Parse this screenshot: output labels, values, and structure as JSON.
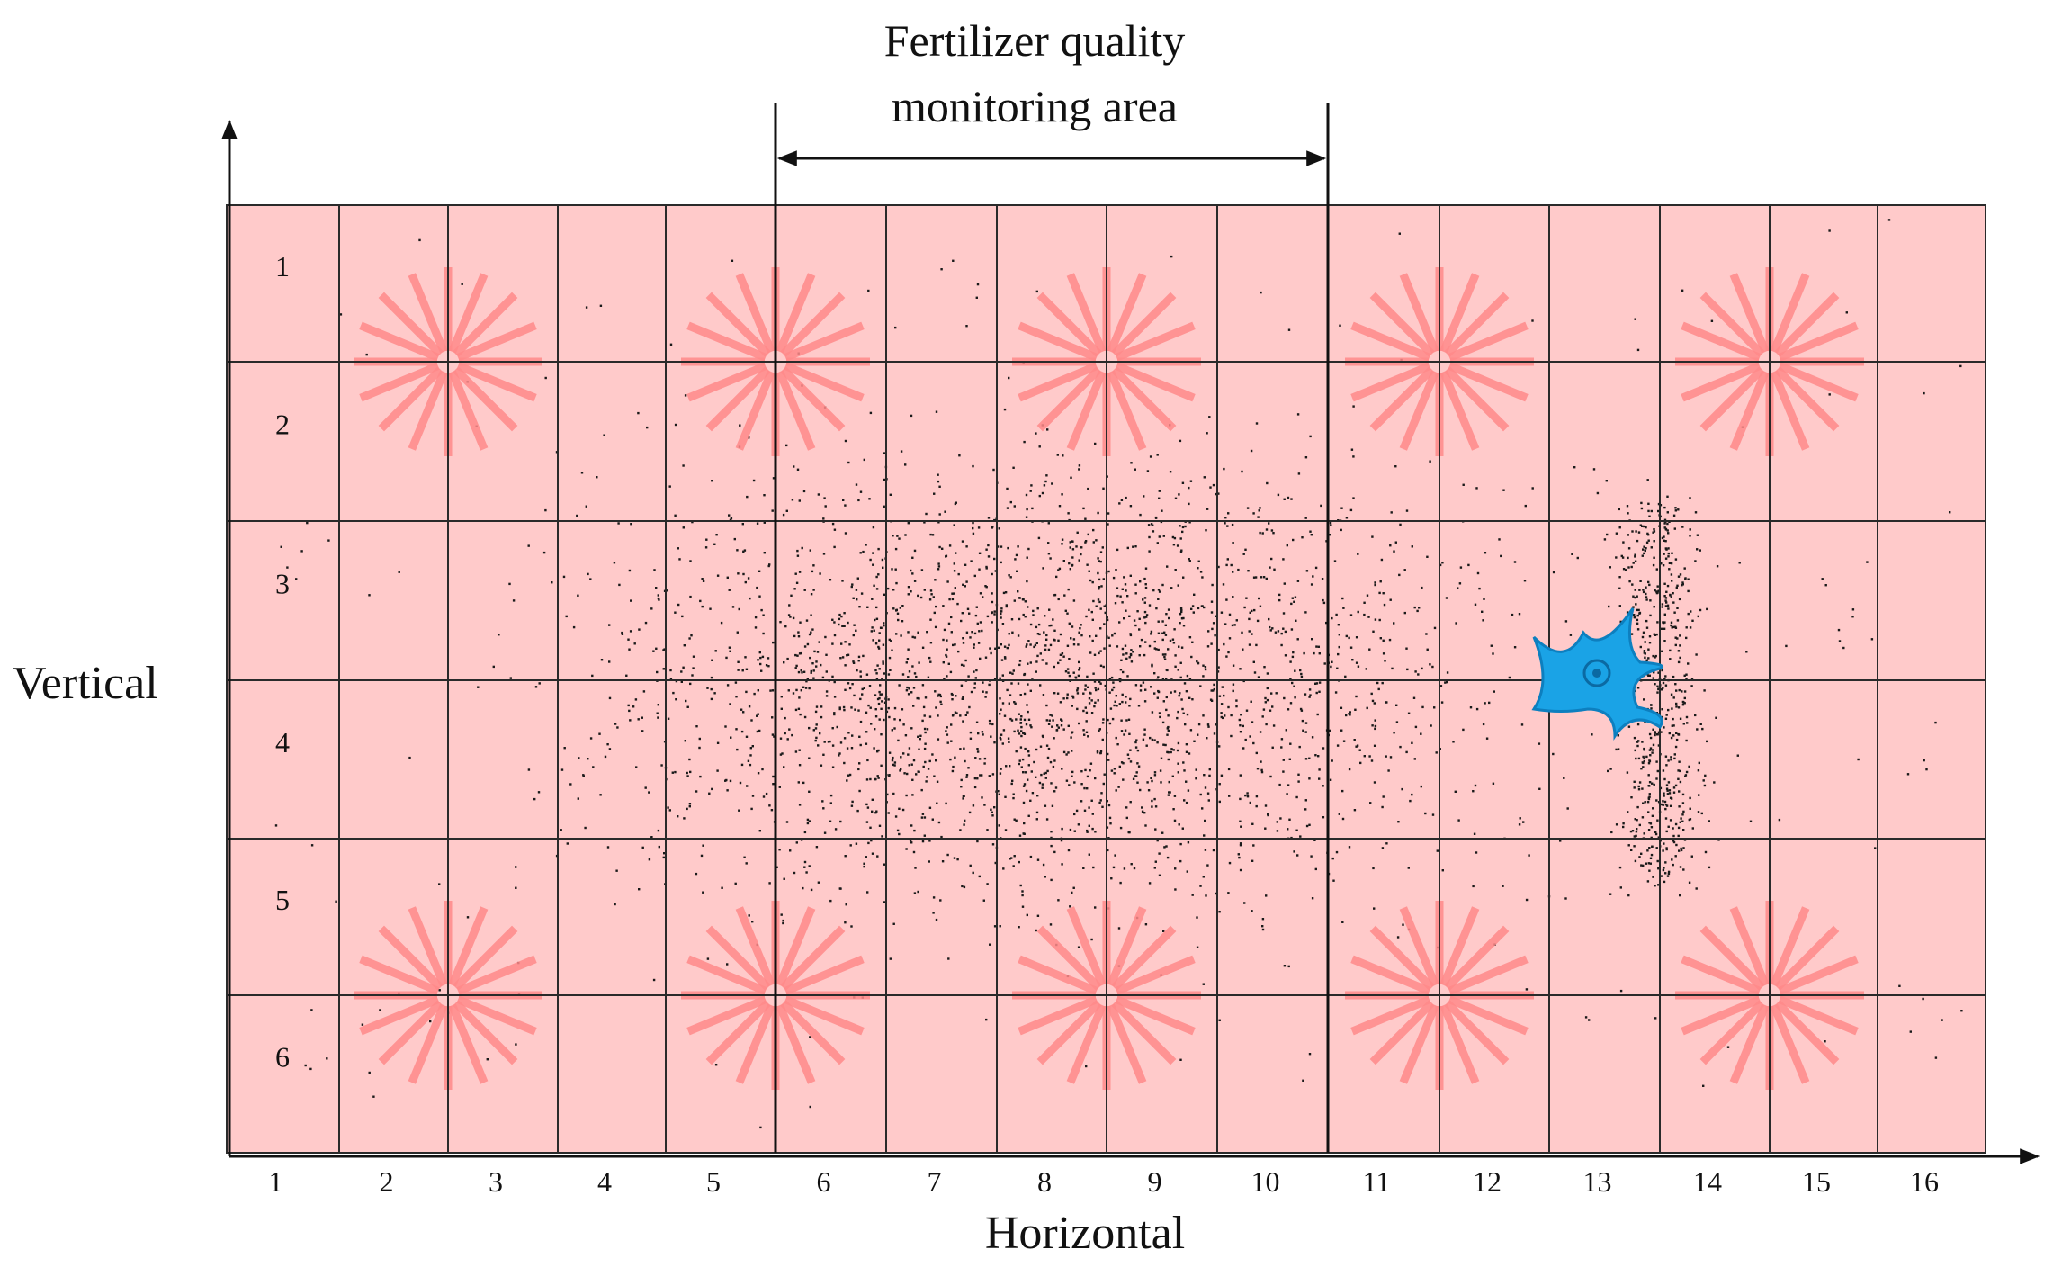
{
  "title": {
    "line1": "Fertilizer quality",
    "line2": "monitoring area"
  },
  "axes": {
    "x_label": "Horizontal",
    "y_label": "Vertical"
  },
  "grid": {
    "columns": [
      "1",
      "2",
      "3",
      "4",
      "5",
      "6",
      "7",
      "8",
      "9",
      "10",
      "11",
      "12",
      "13",
      "14",
      "15",
      "16"
    ],
    "rows": [
      "1",
      "2",
      "3",
      "4",
      "5",
      "6"
    ],
    "monitoring_area_columns": [
      6,
      10
    ]
  },
  "colors": {
    "cell_fill": "#ffcaca",
    "grid_line": "#2a2a2a",
    "sprinkler": "#ff8a8a",
    "spreader": "#1aa3e6",
    "particle": "#1a1a1a"
  },
  "icons": {
    "sprinkler": "sprinkler-burst-icon",
    "spreader": "fertilizer-spreader-icon"
  }
}
